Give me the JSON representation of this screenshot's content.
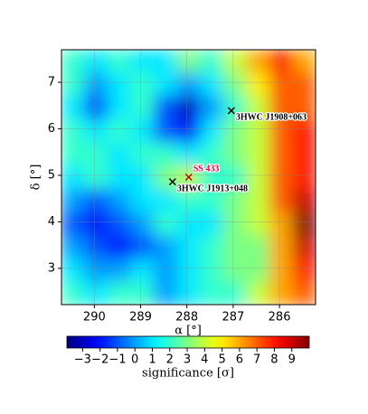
{
  "chart_data": {
    "type": "heatmap",
    "xlabel": "α [°]",
    "ylabel": "δ [°]",
    "xlim": [
      290.71,
      285.22
    ],
    "ylim": [
      2.22,
      7.7
    ],
    "xticks": [
      290,
      289,
      288,
      287,
      286
    ],
    "yticks": [
      3,
      4,
      5,
      6,
      7
    ],
    "grid": true,
    "x": [
      290.46,
      289.96,
      289.46,
      288.96,
      288.46,
      287.96,
      287.46,
      286.96,
      286.46,
      285.96,
      285.46
    ],
    "y": [
      7.45,
      6.95,
      6.45,
      5.95,
      5.45,
      4.95,
      4.45,
      3.95,
      3.45,
      2.95,
      2.45
    ],
    "z": [
      [
        2,
        1,
        2,
        1,
        1,
        3,
        2,
        4,
        6,
        8,
        6
      ],
      [
        2,
        0,
        1,
        2,
        1,
        0,
        1,
        3,
        5,
        7,
        7
      ],
      [
        1,
        -1,
        1,
        2,
        -1,
        -3,
        0,
        2,
        4,
        7,
        7
      ],
      [
        2,
        1,
        2,
        1,
        -1,
        -2,
        1,
        3,
        4,
        7,
        8
      ],
      [
        2,
        2,
        1,
        2,
        2,
        1,
        2,
        3,
        4,
        7,
        8
      ],
      [
        1,
        2,
        1,
        1,
        3,
        4,
        2,
        2,
        4,
        7,
        8
      ],
      [
        0,
        -1,
        0,
        1,
        1,
        2,
        2,
        3,
        4,
        7,
        9
      ],
      [
        -1,
        -2,
        -1,
        0,
        2,
        1,
        1,
        3,
        4,
        6,
        10
      ],
      [
        0,
        -1,
        -2,
        -1,
        0,
        1,
        2,
        3,
        3,
        6,
        9
      ],
      [
        1,
        0,
        0,
        1,
        0,
        1,
        2,
        3,
        3,
        6,
        8
      ],
      [
        2,
        1,
        2,
        2,
        0,
        1,
        2,
        2,
        4,
        6,
        7
      ]
    ],
    "markers": [
      {
        "name": "3HWC J1908+063",
        "x": 287.04,
        "y": 6.39,
        "color": "#000000",
        "label_color": "#000000"
      },
      {
        "name": "SS 433",
        "x": 287.96,
        "y": 4.96,
        "color": "#cc0000",
        "label_color": "#e8003a"
      },
      {
        "name": "3HWC J1913+048",
        "x": 288.31,
        "y": 4.86,
        "color": "#000000",
        "label_color": "#000000"
      }
    ],
    "colorbar": {
      "label": "significance [σ]",
      "colormap": "jet",
      "lim": [
        -3.9,
        10
      ],
      "ticks": [
        {
          "value": -3,
          "label": "−3"
        },
        {
          "value": -2,
          "label": "−2"
        },
        {
          "value": -1,
          "label": "−1"
        },
        0,
        1,
        2,
        3,
        4,
        5,
        6,
        7,
        8,
        9
      ]
    }
  }
}
